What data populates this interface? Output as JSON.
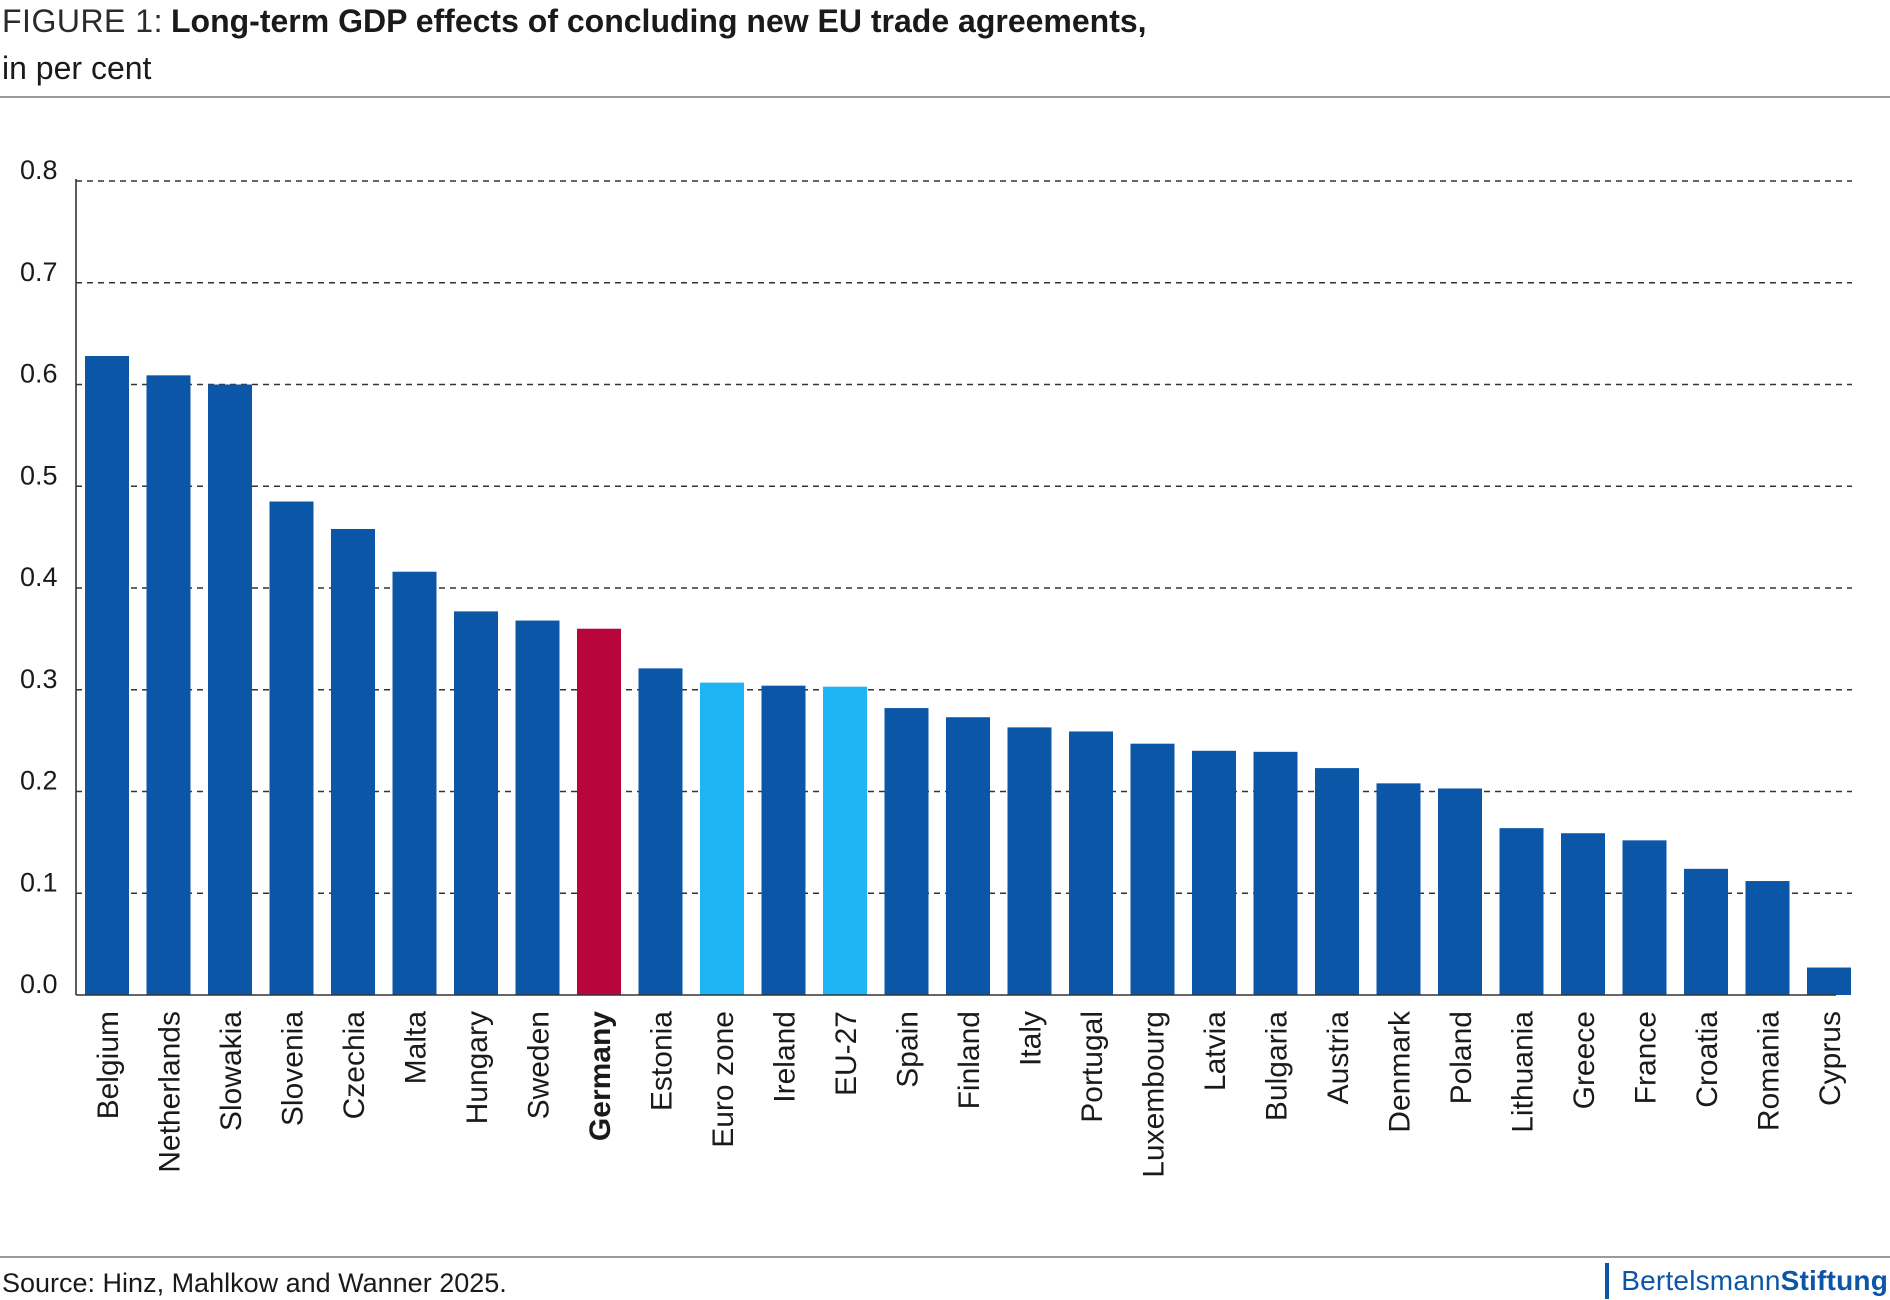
{
  "header": {
    "figure_label": "FIGURE 1:",
    "title": "Long-term GDP effects of concluding new EU trade agreements,",
    "subtitle": "in per cent"
  },
  "footer": {
    "source": "Source: Hinz, Mahlkow and Wanner 2025.",
    "logo_regular": "Bertelsmann",
    "logo_bold": "Stiftung"
  },
  "colors": {
    "default_bar": "#0c56a8",
    "highlight_bar": "#b8063c",
    "aggregate_bar": "#1fb5f5",
    "grid": "#333333",
    "axis": "#333333"
  },
  "chart_data": {
    "type": "bar",
    "title": "Long-term GDP effects of concluding new EU trade agreements, in per cent",
    "xlabel": "",
    "ylabel": "",
    "ylim": [
      0,
      0.8
    ],
    "yticks": [
      0.0,
      0.1,
      0.2,
      0.3,
      0.4,
      0.5,
      0.6,
      0.7,
      0.8
    ],
    "ytick_labels": [
      "0.0",
      "0.1",
      "0.2",
      "0.3",
      "0.4",
      "0.5",
      "0.6",
      "0.7",
      "0.8"
    ],
    "grid": "horizontal dashed",
    "categories": [
      "Belgium",
      "Netherlands",
      "Slowakia",
      "Slovenia",
      "Czechia",
      "Malta",
      "Hungary",
      "Sweden",
      "Germany",
      "Estonia",
      "Euro zone",
      "Ireland",
      "EU-27",
      "Spain",
      "Finland",
      "Italy",
      "Portugal",
      "Luxembourg",
      "Latvia",
      "Bulgaria",
      "Austria",
      "Denmark",
      "Poland",
      "Lithuania",
      "Greece",
      "France",
      "Croatia",
      "Romania",
      "Cyprus"
    ],
    "values": [
      0.628,
      0.609,
      0.6,
      0.485,
      0.458,
      0.416,
      0.377,
      0.368,
      0.36,
      0.321,
      0.307,
      0.304,
      0.303,
      0.282,
      0.273,
      0.263,
      0.259,
      0.247,
      0.24,
      0.239,
      0.223,
      0.208,
      0.203,
      0.164,
      0.159,
      0.152,
      0.124,
      0.112,
      0.027
    ],
    "highlight": [
      "Germany"
    ],
    "aggregates": [
      "Euro zone",
      "EU-27"
    ]
  }
}
